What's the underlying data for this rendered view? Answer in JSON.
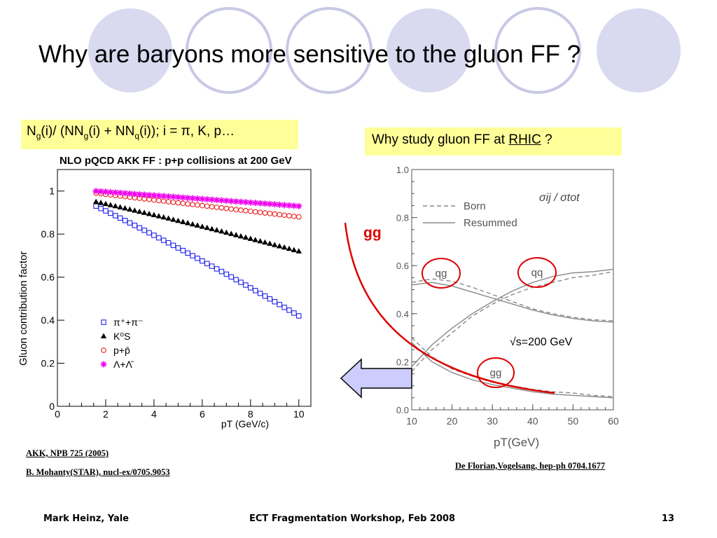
{
  "slide": {
    "title": "Why are baryons more sensitive to the gluon FF ?",
    "ratio_box": {
      "N1": "N",
      "g1": "g",
      "t1": "(i)/ (N",
      "g2": "g",
      "t2": "(i) + N",
      "q": "q",
      "t3": "(i)); i = ",
      "pi": "π",
      "t4": ", K, p…"
    },
    "rhic_box": {
      "prefix": "Why study gluon FF at ",
      "link": "RHIC",
      "suffix": " ?"
    },
    "gg_label": "gg",
    "sqrt_s": "√s=200 GeV",
    "refs": {
      "akk": "AKK, NPB 725 (2005)",
      "mohanty": "B. Mohanty(STAR), nucl-ex/0705.9053",
      "deflorian": "De Florian,Vogelsang, hep-ph 0704.1677"
    },
    "footer": {
      "author": "Mark Heinz, Yale",
      "event": "ECT Fragmentation Workshop, Feb 2008",
      "page": "13"
    },
    "colors": {
      "circle_fill": "#d9d9f0",
      "circle_stroke": "#c8c8e6",
      "highlight": "#ffff99",
      "arrow_fill": "#ccccff",
      "red": "#dd0000"
    }
  },
  "chart_data": [
    {
      "type": "scatter",
      "title": "NLO pQCD AKK FF : p+p collisions at 200 GeV",
      "xlabel": "pT (GeV/c)",
      "ylabel": "Gluon contribution factor",
      "xlim": [
        0,
        10.5
      ],
      "ylim": [
        0,
        1.1
      ],
      "xticks": [
        0,
        2,
        4,
        6,
        8,
        10
      ],
      "yticks": [
        0,
        0.2,
        0.4,
        0.6,
        0.8,
        1
      ],
      "legend_position": "bottom-left",
      "x_range": [
        1.6,
        10
      ],
      "n_points": 43,
      "series": [
        {
          "name": "π⁺+π⁻",
          "marker": "open-square",
          "color": "#2222ee",
          "start": 0.93,
          "end": 0.42,
          "curve": 0.05
        },
        {
          "name": "K⁰S",
          "marker": "filled-triangle",
          "color": "#000000",
          "start": 0.95,
          "end": 0.72,
          "curve": 0.02
        },
        {
          "name": "p+p̄",
          "marker": "open-circle",
          "color": "#ee2222",
          "start": 0.99,
          "end": 0.88,
          "curve": 0
        },
        {
          "name": "Λ+Λ̄",
          "marker": "star",
          "color": "#ee00ee",
          "start": 1.0,
          "end": 0.93,
          "curve": 0
        }
      ],
      "legend_labels": [
        "π⁺+π⁻",
        "K⁰S",
        "p+p̄",
        "Λ+Λ̄"
      ]
    },
    {
      "type": "line",
      "ylabel": "σij / σtot",
      "xlabel": "pT(GeV)",
      "xlim": [
        10,
        60
      ],
      "ylim": [
        0,
        1.0
      ],
      "xticks": [
        10,
        20,
        30,
        40,
        50,
        60
      ],
      "yticks": [
        0.0,
        0.2,
        0.4,
        0.6,
        0.8,
        1.0
      ],
      "legend": [
        "Born",
        "Resummed"
      ],
      "channel_labels": [
        "qg",
        "qq",
        "gg"
      ],
      "series": [
        {
          "channel": "qg",
          "style": "Born",
          "x": [
            10,
            15,
            20,
            25,
            30,
            35,
            40,
            45,
            50,
            55,
            60
          ],
          "y": [
            0.53,
            0.545,
            0.535,
            0.51,
            0.48,
            0.45,
            0.42,
            0.4,
            0.385,
            0.375,
            0.37
          ]
        },
        {
          "channel": "qg",
          "style": "Resummed",
          "x": [
            10,
            15,
            20,
            25,
            30,
            35,
            40,
            45,
            50,
            55,
            60
          ],
          "y": [
            0.52,
            0.53,
            0.515,
            0.49,
            0.465,
            0.44,
            0.415,
            0.395,
            0.38,
            0.37,
            0.365
          ]
        },
        {
          "channel": "qq",
          "style": "Born",
          "x": [
            10,
            15,
            20,
            25,
            30,
            35,
            40,
            45,
            50,
            55,
            60
          ],
          "y": [
            0.16,
            0.25,
            0.32,
            0.39,
            0.44,
            0.48,
            0.51,
            0.53,
            0.55,
            0.56,
            0.575
          ]
        },
        {
          "channel": "qq",
          "style": "Resummed",
          "x": [
            10,
            15,
            20,
            25,
            30,
            35,
            40,
            45,
            50,
            55,
            60
          ],
          "y": [
            0.18,
            0.27,
            0.34,
            0.4,
            0.45,
            0.495,
            0.53,
            0.555,
            0.57,
            0.575,
            0.585
          ]
        },
        {
          "channel": "gg",
          "style": "Born",
          "x": [
            10,
            15,
            20,
            25,
            30,
            35,
            40,
            45,
            50,
            55,
            60
          ],
          "y": [
            0.3,
            0.22,
            0.17,
            0.14,
            0.115,
            0.1,
            0.085,
            0.075,
            0.07,
            0.06,
            0.055
          ]
        },
        {
          "channel": "gg",
          "style": "Resummed",
          "x": [
            10,
            15,
            20,
            25,
            30,
            35,
            40,
            45,
            50,
            55,
            60
          ],
          "y": [
            0.28,
            0.2,
            0.155,
            0.125,
            0.105,
            0.09,
            0.075,
            0.065,
            0.06,
            0.055,
            0.05
          ]
        }
      ]
    }
  ]
}
